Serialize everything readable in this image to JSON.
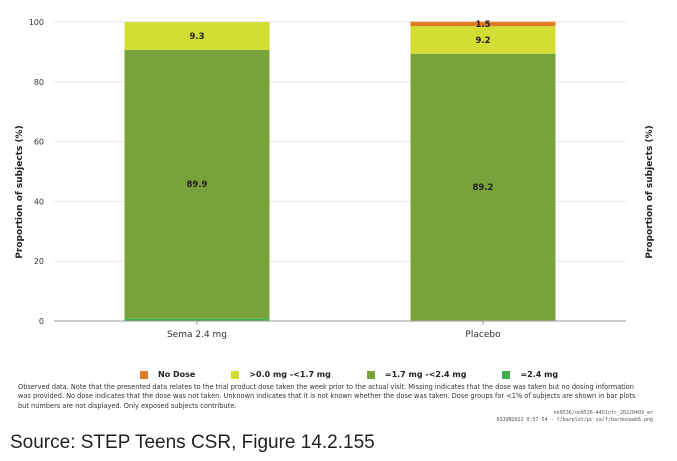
{
  "chart_data": {
    "type": "stacked-bar",
    "ylabel": "Proportion of subjects (%)",
    "right_ylabel": "Proportion of subjects (%)",
    "ylim": [
      0,
      100
    ],
    "yticks": [
      0,
      20,
      40,
      60,
      80,
      100
    ],
    "categories": [
      "Sema 2.4 mg",
      "Placebo"
    ],
    "series": [
      {
        "name": "=2.4 mg",
        "color": "#3fae49",
        "values": [
          0.8,
          0.2
        ]
      },
      {
        "name": "=1.7 mg -<2.4 mg",
        "color": "#78a23c",
        "values": [
          89.9,
          89.2
        ]
      },
      {
        "name": ">0.0 mg -<1.7 mg",
        "color": "#d2de34",
        "values": [
          9.3,
          9.2
        ]
      },
      {
        "name": "No Dose",
        "color": "#e07b24",
        "values": [
          0,
          1.5
        ]
      }
    ],
    "data_labels": [
      {
        "category": "Sema 2.4 mg",
        "series": "=1.7 mg -<2.4 mg",
        "text": "89.9"
      },
      {
        "category": "Sema 2.4 mg",
        "series": ">0.0 mg -<1.7 mg",
        "text": "9.3"
      },
      {
        "category": "Placebo",
        "series": "=1.7 mg -<2.4 mg",
        "text": "89.2"
      },
      {
        "category": "Placebo",
        "series": ">0.0 mg -<1.7 mg",
        "text": "9.2"
      },
      {
        "category": "Placebo",
        "series": "No Dose",
        "text": "1.5"
      }
    ],
    "legend_order": [
      "No Dose",
      ">0.0 mg -<1.7 mg",
      "=1.7 mg -<2.4 mg",
      "=2.4 mg"
    ]
  },
  "footnote": "Observed data. Note that the presented data relates to the trial product dose taken the week prior to the actual visit. Missing indicates that the dose was taken but no dosing information was provided. No dose indicates that the dose was not taken. Unknown indicates that it is not known whether the dose was taken. Dose groups for <1% of subjects are shown in bar plots but numbers are not displayed. Only exposed subjects contribute.",
  "file_info": {
    "line1": "nn9536/nn9536-4451ctr_20220403_er",
    "line2": "03JUN2022 0:57:54 - f/barplot/pc sa/f/bardosewk6.png"
  },
  "source": "Source: STEP Teens CSR, Figure 14.2.155"
}
